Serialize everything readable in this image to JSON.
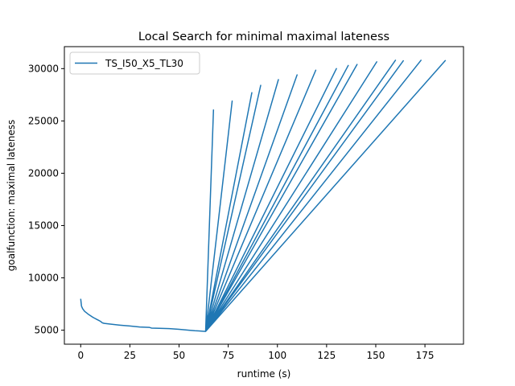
{
  "chart_data": {
    "type": "line",
    "title": "Local Search for minimal maximal lateness",
    "xlabel": "runtime (s)",
    "ylabel": "goalfunction: maximal lateness",
    "xlim": [
      -8.3,
      194.6
    ],
    "ylim": [
      3660,
      32100
    ],
    "xticks": [
      0,
      25,
      50,
      75,
      100,
      125,
      150,
      175
    ],
    "yticks": [
      5000,
      10000,
      15000,
      20000,
      25000,
      30000
    ],
    "grid": false,
    "legend_position": "top-left",
    "colors": {
      "line": "#1f77b4"
    },
    "series": [
      {
        "name": "TS_I50_X5_TL30",
        "x": [
          0,
          0.4,
          1,
          2,
          3,
          4,
          5,
          6,
          7,
          8,
          9,
          10,
          11,
          12,
          15,
          20,
          25,
          30,
          35,
          36,
          40,
          45,
          50,
          55,
          58,
          60,
          62,
          63.5,
          67.5,
          63.5,
          77,
          63.5,
          87,
          63.5,
          91.5,
          63.5,
          100.5,
          63.5,
          110,
          63.5,
          119.5,
          63.5,
          130,
          63.5,
          136,
          63.5,
          140.5,
          63.5,
          150.5,
          63.5,
          160,
          63.5,
          164,
          63.5,
          173,
          63.5,
          185.5
        ],
        "y": [
          8000,
          7300,
          7050,
          6800,
          6650,
          6500,
          6380,
          6250,
          6150,
          6050,
          5950,
          5850,
          5700,
          5650,
          5580,
          5480,
          5400,
          5300,
          5260,
          5200,
          5180,
          5150,
          5080,
          5000,
          4950,
          4930,
          4900,
          4880,
          26050,
          4880,
          26900,
          4880,
          27700,
          4880,
          28400,
          4880,
          28950,
          4880,
          29400,
          4880,
          29850,
          4880,
          30000,
          4880,
          30300,
          4880,
          30400,
          4880,
          30650,
          4880,
          30800,
          4880,
          30750,
          4880,
          30800,
          4880,
          30800
        ]
      }
    ]
  }
}
